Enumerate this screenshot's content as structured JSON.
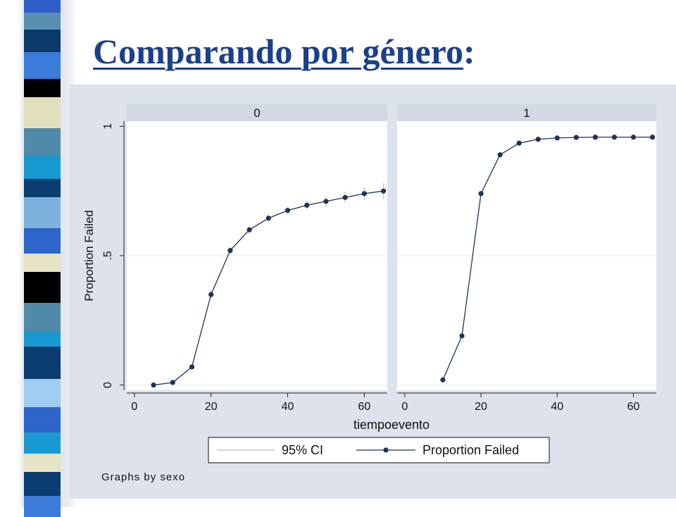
{
  "slide": {
    "title_main": "Comparando por género",
    "title_colon": ":"
  },
  "graph_note": "Graphs by sexo",
  "colors": {
    "title": "#1b3f8b",
    "series": "#1f3259",
    "ci": "#c4ccd8",
    "graph_bg": "#dde2ec",
    "strip_bg": "#d3d9e4"
  },
  "chart_data": [
    {
      "type": "line",
      "panel_label": "0",
      "xlabel": "tiempoevento",
      "ylabel": "Proportion Failed",
      "xlim": [
        -2,
        66
      ],
      "ylim": [
        -0.02,
        1.02
      ],
      "x_ticks": [
        0,
        20,
        40,
        60
      ],
      "x_tick_labels": [
        "0",
        "20",
        "40",
        "60"
      ],
      "y_ticks": [
        0,
        0.5,
        1
      ],
      "y_tick_labels": [
        "0",
        ".5",
        "1"
      ],
      "grid": true,
      "legend": [
        "95% CI",
        "Proportion Failed"
      ],
      "legend_position": "bottom",
      "series": [
        {
          "name": "Proportion Failed",
          "x": [
            5,
            10,
            15,
            20,
            25,
            30,
            35,
            40,
            45,
            50,
            55,
            60,
            65
          ],
          "y": [
            0.0,
            0.01,
            0.07,
            0.35,
            0.52,
            0.6,
            0.645,
            0.675,
            0.695,
            0.71,
            0.725,
            0.74,
            0.75
          ],
          "ci_low": [
            0.0,
            0.006,
            0.06,
            0.335,
            0.505,
            0.588,
            0.632,
            0.66,
            0.678,
            0.69,
            0.703,
            0.715,
            0.72
          ],
          "ci_high": [
            0.0,
            0.014,
            0.08,
            0.365,
            0.535,
            0.612,
            0.658,
            0.69,
            0.712,
            0.73,
            0.747,
            0.765,
            0.78
          ]
        }
      ]
    },
    {
      "type": "line",
      "panel_label": "1",
      "xlabel": "tiempoevento",
      "ylabel": "Proportion Failed",
      "xlim": [
        -2,
        66
      ],
      "ylim": [
        -0.02,
        1.02
      ],
      "x_ticks": [
        0,
        20,
        40,
        60
      ],
      "x_tick_labels": [
        "0",
        "20",
        "40",
        "60"
      ],
      "y_ticks": [
        0,
        0.5,
        1
      ],
      "y_tick_labels": [
        "0",
        ".5",
        "1"
      ],
      "grid": true,
      "legend": [
        "95% CI",
        "Proportion Failed"
      ],
      "legend_position": "bottom",
      "series": [
        {
          "name": "Proportion Failed",
          "x": [
            10,
            15,
            20,
            25,
            30,
            35,
            40,
            45,
            50,
            55,
            60,
            65
          ],
          "y": [
            0.02,
            0.19,
            0.74,
            0.89,
            0.935,
            0.95,
            0.955,
            0.957,
            0.958,
            0.958,
            0.958,
            0.958
          ],
          "ci_low": [
            0.015,
            0.18,
            0.73,
            0.882,
            0.93,
            0.945,
            0.95,
            0.952,
            0.953,
            0.953,
            0.953,
            0.953
          ],
          "ci_high": [
            0.025,
            0.2,
            0.75,
            0.898,
            0.94,
            0.955,
            0.96,
            0.962,
            0.963,
            0.963,
            0.963,
            0.963
          ]
        }
      ]
    }
  ]
}
